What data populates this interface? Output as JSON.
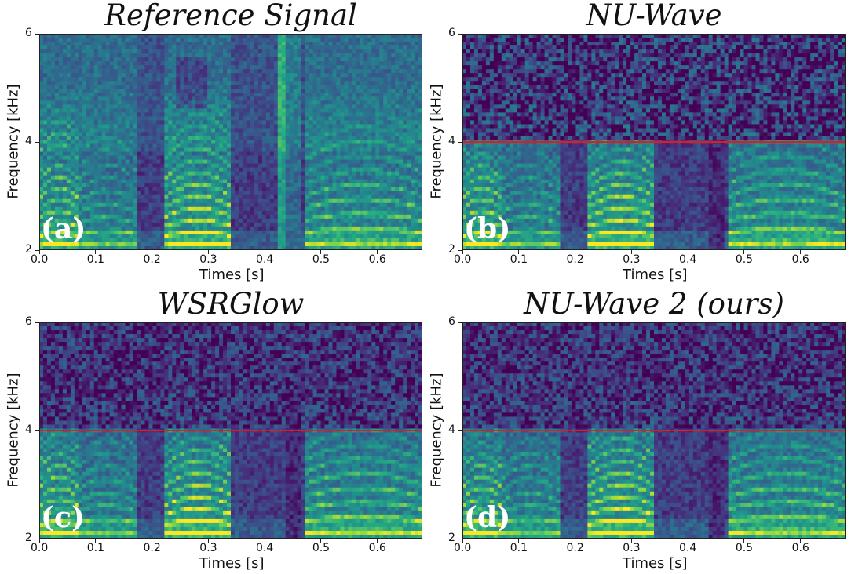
{
  "chart_data": [
    {
      "type": "heatmap",
      "panel_letter": "(a)",
      "title": "Reference Signal",
      "xlabel": "Times [s]",
      "ylabel": "Frequency [kHz]",
      "xlim": [
        0.0,
        0.68
      ],
      "ylim": [
        2,
        6
      ],
      "xticks": [
        "0.0",
        "0.1",
        "0.2",
        "0.3",
        "0.4",
        "0.5",
        "0.6"
      ],
      "yticks": [
        "2",
        "4",
        "6"
      ],
      "cutoff_khz": null,
      "noise_level": "low"
    },
    {
      "type": "heatmap",
      "panel_letter": "(b)",
      "title": "NU-Wave",
      "xlabel": "Times [s]",
      "ylabel": "Frequency [kHz]",
      "xlim": [
        0.0,
        0.68
      ],
      "ylim": [
        2,
        6
      ],
      "xticks": [
        "0.0",
        "0.1",
        "0.2",
        "0.3",
        "0.4",
        "0.5",
        "0.6"
      ],
      "yticks": [
        "2",
        "4",
        "6"
      ],
      "cutoff_khz": 4,
      "noise_level": "high"
    },
    {
      "type": "heatmap",
      "panel_letter": "(c)",
      "title": "WSRGlow",
      "xlabel": "Times [s]",
      "ylabel": "Frequency [kHz]",
      "xlim": [
        0.0,
        0.68
      ],
      "ylim": [
        2,
        6
      ],
      "xticks": [
        "0.0",
        "0.1",
        "0.2",
        "0.3",
        "0.4",
        "0.5",
        "0.6"
      ],
      "yticks": [
        "2",
        "4",
        "6"
      ],
      "cutoff_khz": 4,
      "noise_level": "medium"
    },
    {
      "type": "heatmap",
      "panel_letter": "(d)",
      "title": "NU-Wave 2 (ours)",
      "xlabel": "Times [s]",
      "ylabel": "Frequency [kHz]",
      "xlim": [
        0.0,
        0.68
      ],
      "ylim": [
        2,
        6
      ],
      "xticks": [
        "0.0",
        "0.1",
        "0.2",
        "0.3",
        "0.4",
        "0.5",
        "0.6"
      ],
      "yticks": [
        "2",
        "4",
        "6"
      ],
      "cutoff_khz": 4,
      "noise_level": "medium"
    }
  ],
  "colors": {
    "colormap": "viridis",
    "cutoff_line": "#e41a1c"
  }
}
